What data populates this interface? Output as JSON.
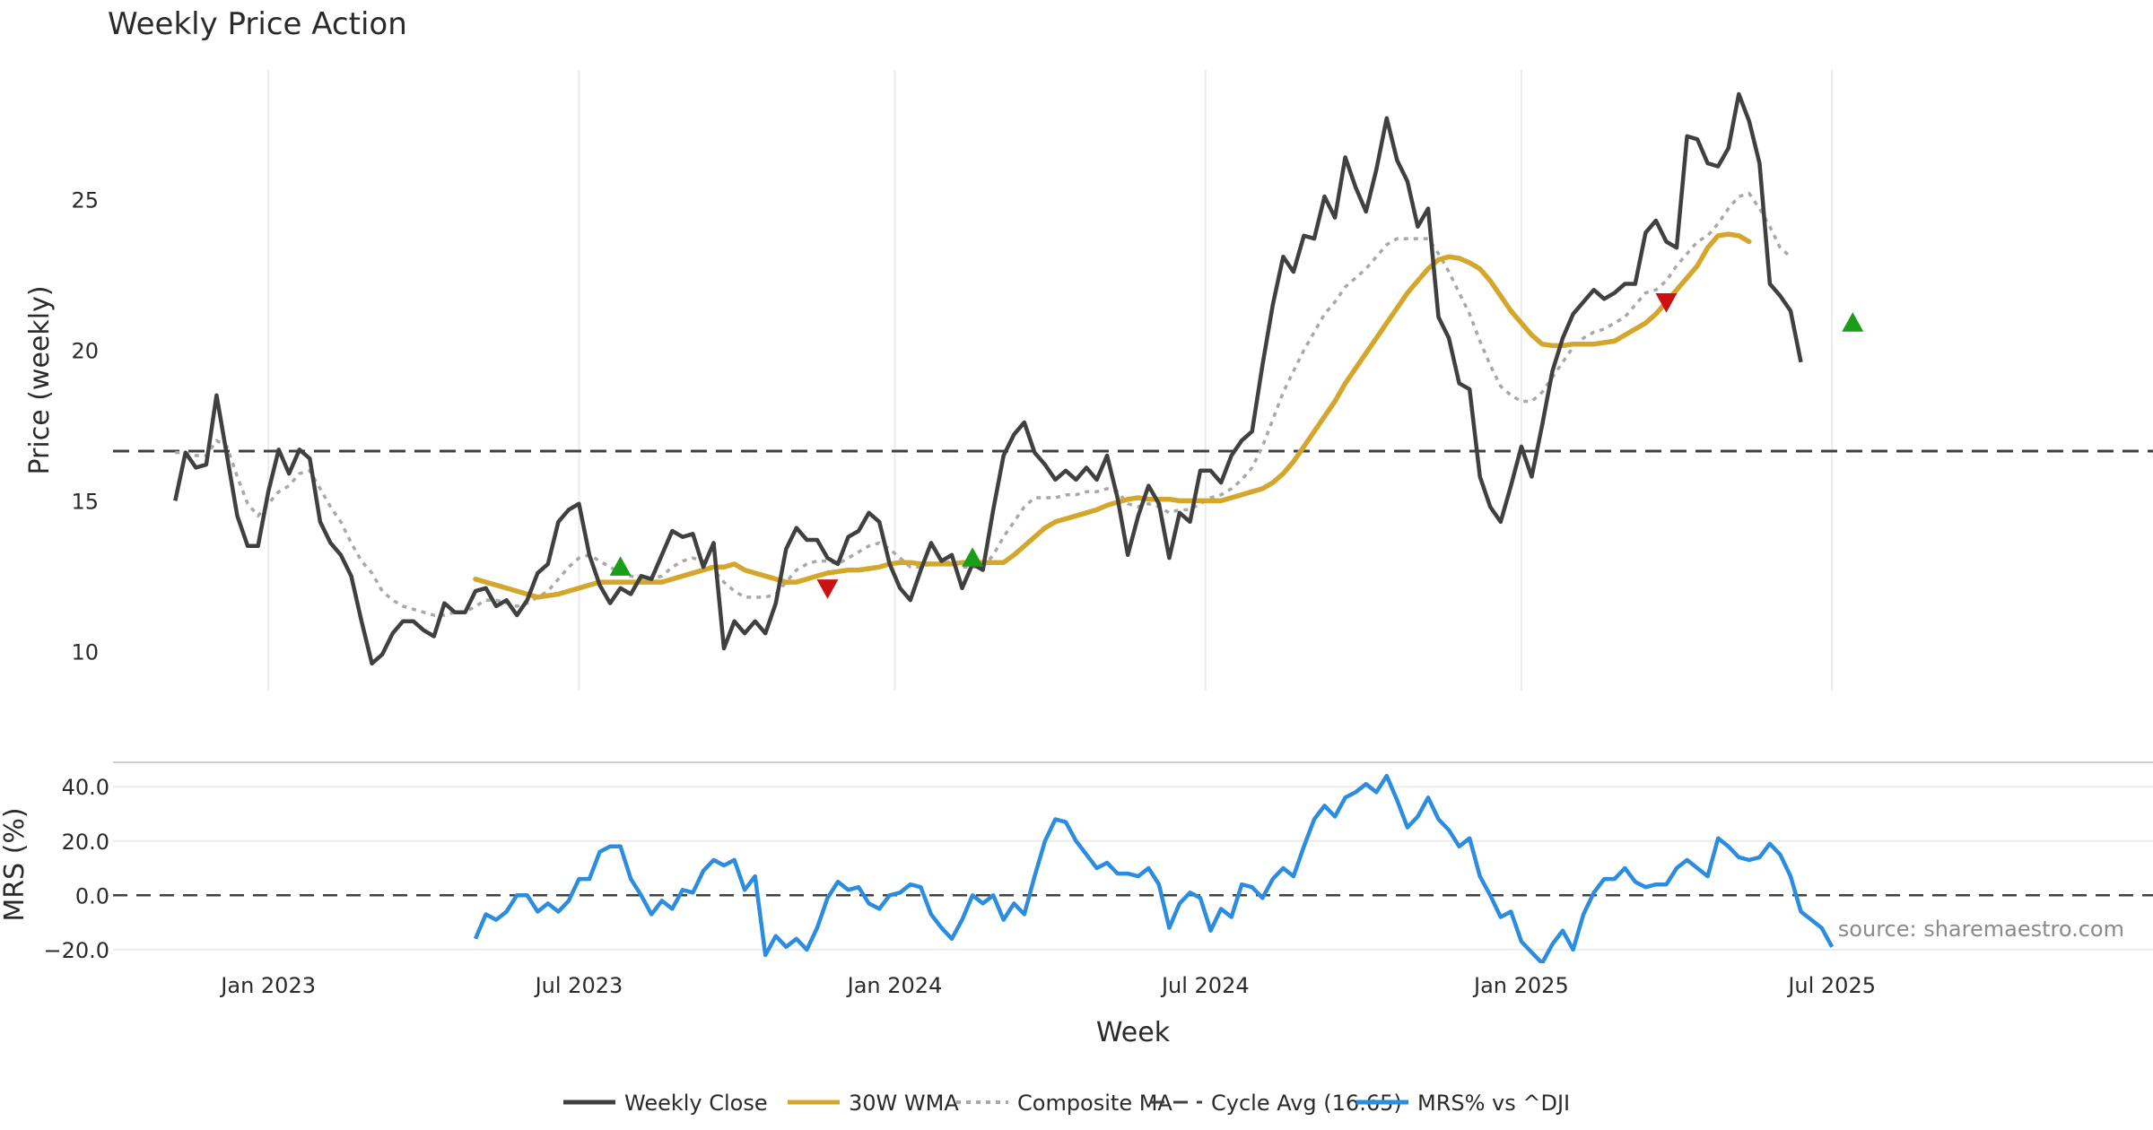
{
  "chart_data": [
    {
      "panel": "price",
      "type": "line",
      "title": "Weekly Price Action",
      "ylabel": "Price (weekly)",
      "ylim": [
        8.7,
        29.3
      ],
      "yticks": [
        10,
        15,
        20,
        25
      ],
      "xlim": [
        -6,
        191
      ],
      "xtick_positions": [
        9,
        39,
        69.5,
        99.5,
        130,
        160
      ],
      "xtick_labels": [
        "Jan 2023",
        "Jul 2023",
        "Jan 2024",
        "Jul 2024",
        "Jan 2025",
        "Jul 2025"
      ],
      "series": [
        {
          "name": "Weekly Close",
          "color": "#404040",
          "values": [
            15,
            16.6,
            16.1,
            16.2,
            18.5,
            16.5,
            14.5,
            13.5,
            13.5,
            15.3,
            16.7,
            15.9,
            16.7,
            16.4,
            14.3,
            13.6,
            13.2,
            12.5,
            11,
            9.6,
            9.9,
            10.6,
            11,
            11,
            10.7,
            10.5,
            11.6,
            11.3,
            11.3,
            12,
            12.1,
            11.5,
            11.7,
            11.2,
            11.7,
            12.6,
            12.9,
            14.3,
            14.7,
            14.9,
            13.2,
            12.2,
            11.6,
            12.1,
            11.9,
            12.5,
            12.4,
            13.2,
            14,
            13.8,
            13.9,
            12.8,
            13.6,
            10.1,
            11,
            10.6,
            11,
            10.6,
            11.6,
            13.4,
            14.1,
            13.7,
            13.7,
            13.1,
            12.9,
            13.8,
            14,
            14.6,
            14.3,
            12.9,
            12.1,
            11.7,
            12.7,
            13.6,
            13,
            13.2,
            12.1,
            12.9,
            12.7,
            14.7,
            16.5,
            17.2,
            17.6,
            16.6,
            16.2,
            15.7,
            16,
            15.7,
            16.1,
            15.7,
            16.5,
            15.1,
            13.2,
            14.5,
            15.5,
            14.9,
            13.1,
            14.6,
            14.3,
            16,
            16,
            15.6,
            16.5,
            17,
            17.3,
            19.5,
            21.5,
            23.1,
            22.6,
            23.8,
            23.7,
            25.1,
            24.4,
            26.4,
            25.4,
            24.6,
            26,
            27.7,
            26.3,
            25.6,
            24.1,
            24.7,
            21.1,
            20.4,
            18.9,
            18.7,
            15.8,
            14.8,
            14.3,
            15.5,
            16.8,
            15.8,
            17.5,
            19.3,
            20.4,
            21.2,
            21.6,
            22,
            21.7,
            21.9,
            22.2,
            22.2,
            23.9,
            24.3,
            23.6,
            23.4,
            27.1,
            27,
            26.2,
            26.1,
            26.7,
            28.5,
            27.6,
            26.2,
            22.2,
            21.8,
            21.3,
            19.6
          ]
        },
        {
          "name": "30W WMA",
          "color": "#d4a72c",
          "start_week": 29,
          "values": [
            12.4,
            12.3,
            12.2,
            12.1,
            12,
            11.9,
            11.8,
            11.85,
            11.9,
            12,
            12.1,
            12.2,
            12.3,
            12.3,
            12.3,
            12.3,
            12.3,
            12.3,
            12.3,
            12.4,
            12.5,
            12.6,
            12.7,
            12.8,
            12.8,
            12.9,
            12.7,
            12.6,
            12.5,
            12.4,
            12.3,
            12.3,
            12.4,
            12.5,
            12.6,
            12.65,
            12.7,
            12.7,
            12.75,
            12.8,
            12.9,
            12.95,
            12.95,
            12.9,
            12.9,
            12.9,
            12.9,
            12.95,
            12.95,
            12.95,
            12.95,
            12.95,
            13.2,
            13.5,
            13.8,
            14.1,
            14.3,
            14.4,
            14.5,
            14.6,
            14.7,
            14.85,
            14.95,
            15.05,
            15.1,
            15.05,
            15.05,
            15.05,
            15,
            15,
            15,
            15,
            15,
            15.1,
            15.2,
            15.3,
            15.4,
            15.6,
            15.9,
            16.3,
            16.8,
            17.3,
            17.8,
            18.3,
            18.9,
            19.4,
            19.9,
            20.4,
            20.9,
            21.4,
            21.9,
            22.3,
            22.7,
            23,
            23.1,
            23.05,
            22.9,
            22.7,
            22.3,
            21.8,
            21.3,
            20.9,
            20.5,
            20.2,
            20.15,
            20.15,
            20.2,
            20.2,
            20.2,
            20.25,
            20.3,
            20.5,
            20.7,
            20.9,
            21.2,
            21.6,
            22,
            22.4,
            22.8,
            23.4,
            23.8,
            23.85,
            23.8,
            23.6
          ]
        },
        {
          "name": "Composite MA",
          "color": "#a8a8a8",
          "values": [
            16.6,
            16.6,
            16.5,
            16.5,
            17,
            16.8,
            15.8,
            14.9,
            14.5,
            14.9,
            15.3,
            15.5,
            15.9,
            16,
            15.4,
            14.8,
            14.3,
            13.6,
            13,
            12.6,
            12,
            11.7,
            11.5,
            11.4,
            11.3,
            11.2,
            11.2,
            11.3,
            11.3,
            11.5,
            11.7,
            11.7,
            11.6,
            11.5,
            11.6,
            11.8,
            12,
            12.4,
            12.8,
            13.1,
            13.2,
            13,
            12.8,
            12.6,
            12.5,
            12.4,
            12.4,
            12.5,
            12.8,
            13,
            13.1,
            13,
            12.7,
            12.3,
            12,
            11.8,
            11.8,
            11.8,
            11.9,
            12.3,
            12.7,
            12.9,
            13,
            13,
            12.9,
            13.1,
            13.3,
            13.5,
            13.6,
            13.4,
            13.1,
            12.8,
            12.8,
            12.9,
            12.9,
            13,
            12.8,
            12.8,
            12.8,
            13.2,
            13.8,
            14.3,
            14.8,
            15.1,
            15.1,
            15.1,
            15.2,
            15.2,
            15.3,
            15.3,
            15.4,
            15.3,
            14.9,
            14.8,
            14.9,
            14.8,
            14.6,
            14.7,
            14.7,
            14.9,
            15.1,
            15.2,
            15.4,
            15.7,
            16.1,
            16.8,
            17.7,
            18.6,
            19.3,
            20,
            20.6,
            21.2,
            21.6,
            22.1,
            22.4,
            22.7,
            23.1,
            23.5,
            23.7,
            23.7,
            23.7,
            23.7,
            23.2,
            22.6,
            21.9,
            21.2,
            20.3,
            19.5,
            18.8,
            18.5,
            18.3,
            18.3,
            18.6,
            19.1,
            19.6,
            20.1,
            20.4,
            20.6,
            20.7,
            20.9,
            21.1,
            21.5,
            21.9,
            22,
            22.3,
            22.8,
            23.2,
            23.6,
            23.8,
            24.2,
            24.7,
            25.1,
            25.2,
            24.7,
            24.1,
            23.4,
            23.1
          ]
        },
        {
          "name": "Cycle Avg (16.65)",
          "color": "#404040",
          "constant": 16.65
        }
      ],
      "markers": [
        {
          "kind": "buy",
          "week": 43,
          "value": 12.8,
          "color": "#1a9e1a"
        },
        {
          "kind": "sell",
          "week": 63,
          "value": 12.1,
          "color": "#cc1111"
        },
        {
          "kind": "buy",
          "week": 77,
          "value": 13.1,
          "color": "#1a9e1a"
        },
        {
          "kind": "sell",
          "week": 144,
          "value": 21.6,
          "color": "#cc1111"
        },
        {
          "kind": "buy",
          "week": 162,
          "value": 20.9,
          "color": "#1a9e1a"
        }
      ]
    },
    {
      "panel": "mrs",
      "type": "line",
      "ylabel": "MRS (%)",
      "xlabel": "Week",
      "ylim": [
        -25,
        47
      ],
      "yticks": [
        40,
        20,
        0,
        -20
      ],
      "ytick_labels": [
        "40.0",
        "20.0",
        "0.0",
        "−20.0"
      ],
      "zero_line": 0,
      "series": [
        {
          "name": "MRS% vs ^DJI",
          "color": "#2b8ce0",
          "start_week": 29,
          "values": [
            -16,
            -7,
            -9,
            -6,
            0,
            0,
            -6,
            -3,
            -6,
            -2,
            6,
            6,
            16,
            18,
            18,
            6,
            0,
            -7,
            -2,
            -5,
            2,
            1,
            9,
            13,
            11,
            13,
            2,
            7,
            -22,
            -15,
            -19,
            -16,
            -20,
            -12,
            -1,
            5,
            2,
            3,
            -3,
            -5,
            0,
            1,
            4,
            3,
            -7,
            -12,
            -16,
            -9,
            0,
            -3,
            0,
            -9,
            -3,
            -7,
            7,
            20,
            28,
            27,
            20,
            15,
            10,
            12,
            8,
            8,
            7,
            10,
            4,
            -12,
            -3,
            1,
            -1,
            -13,
            -5,
            -8,
            4,
            3,
            -1,
            6,
            10,
            7,
            18,
            28,
            33,
            29,
            36,
            38,
            41,
            38,
            44,
            35,
            25,
            29,
            36,
            28,
            24,
            18,
            21,
            7,
            0,
            -8,
            -6,
            -17,
            -21,
            -25,
            -18,
            -13,
            -20,
            -7,
            1,
            6,
            6,
            10,
            5,
            3,
            4,
            4,
            10,
            13,
            10,
            7,
            21,
            18,
            14,
            13,
            14,
            19,
            15,
            7,
            -6,
            -9,
            -12,
            -19
          ]
        }
      ]
    }
  ],
  "source_note": "source: sharemaestro.com",
  "legend": [
    {
      "label": "Weekly Close",
      "style": "solid",
      "color": "#404040"
    },
    {
      "label": "30W WMA",
      "style": "solid",
      "color": "#d4a72c"
    },
    {
      "label": "Composite MA",
      "style": "dotted",
      "color": "#a8a8a8"
    },
    {
      "label": "Cycle Avg (16.65)",
      "style": "dashed",
      "color": "#404040"
    },
    {
      "label": "MRS% vs ^DJI",
      "style": "solid",
      "color": "#2b8ce0"
    }
  ]
}
